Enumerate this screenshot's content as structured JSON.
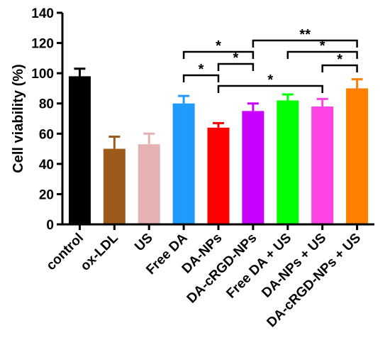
{
  "chart_data": {
    "type": "bar",
    "title": "",
    "xlabel": "",
    "ylabel": "Cell viability (%)",
    "ylim": [
      0,
      140
    ],
    "yticks": [
      0,
      20,
      40,
      60,
      80,
      100,
      120,
      140
    ],
    "grid": false,
    "categories": [
      "control",
      "ox-LDL",
      "US",
      "Free DA",
      "DA-NPs",
      "DA-cRGD-NPs",
      "Free DA + US",
      "DA-NPs + US",
      "DA-cRGD-NPs + US"
    ],
    "values": [
      98,
      50,
      53,
      80,
      64,
      75,
      82,
      78,
      90
    ],
    "errors": [
      5,
      8,
      7,
      5,
      3,
      5,
      4,
      5,
      6
    ],
    "colors": [
      "#000000",
      "#9e5a1a",
      "#e6b3b3",
      "#1f9bff",
      "#ff0000",
      "#c800ff",
      "#00ff00",
      "#ff44e6",
      "#ff8000"
    ],
    "significance": [
      {
        "from": "Free DA",
        "to": "DA-NPs",
        "label": "*"
      },
      {
        "from": "DA-NPs",
        "to": "DA-cRGD-NPs",
        "label": "*"
      },
      {
        "from": "Free DA",
        "to": "DA-cRGD-NPs",
        "label": "*"
      },
      {
        "from": "DA-NPs",
        "to": "DA-NPs + US",
        "label": "*"
      },
      {
        "from": "DA-NPs + US",
        "to": "DA-cRGD-NPs + US",
        "label": "*"
      },
      {
        "from": "Free DA + US",
        "to": "DA-cRGD-NPs + US",
        "label": "*"
      },
      {
        "from": "DA-cRGD-NPs",
        "to": "DA-cRGD-NPs + US",
        "label": "**"
      }
    ]
  }
}
